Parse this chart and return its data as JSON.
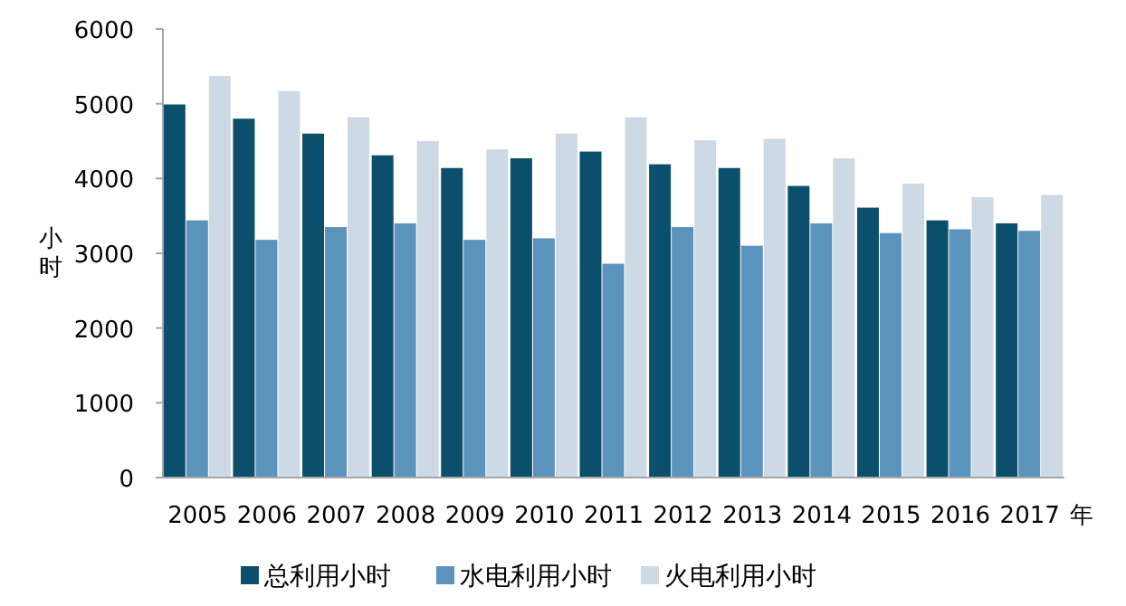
{
  "chart_data": {
    "type": "bar",
    "ylabel": "小时",
    "xlabel": "年",
    "categories": [
      "2005",
      "2006",
      "2007",
      "2008",
      "2009",
      "2010",
      "2011",
      "2012",
      "2013",
      "2014",
      "2015",
      "2016",
      "2017"
    ],
    "series": [
      {
        "name": "总利用小时",
        "color": "#0b4f6c",
        "values": [
          4990,
          4800,
          4600,
          4310,
          4140,
          4270,
          4360,
          4190,
          4140,
          3900,
          3610,
          3440,
          3400
        ]
      },
      {
        "name": "水电利用小时",
        "color": "#5b93bd",
        "values": [
          3440,
          3180,
          3350,
          3400,
          3180,
          3200,
          2860,
          3350,
          3100,
          3400,
          3270,
          3320,
          3300
        ]
      },
      {
        "name": "火电利用小时",
        "color": "#cdd9e5",
        "values": [
          5370,
          5170,
          4820,
          4500,
          4390,
          4600,
          4820,
          4510,
          4530,
          4270,
          3930,
          3750,
          3780
        ]
      }
    ],
    "ylim": [
      0,
      6000
    ],
    "yticks": [
      0,
      1000,
      2000,
      3000,
      4000,
      5000,
      6000
    ],
    "legend": "bottom"
  }
}
